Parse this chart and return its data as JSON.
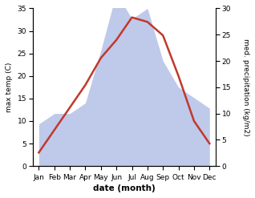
{
  "months": [
    "Jan",
    "Feb",
    "Mar",
    "Apr",
    "May",
    "Jun",
    "Jul",
    "Aug",
    "Sep",
    "Oct",
    "Nov",
    "Dec"
  ],
  "temperature": [
    3,
    8,
    13,
    18,
    24,
    28,
    33,
    32,
    29,
    20,
    10,
    5
  ],
  "precipitation": [
    8,
    10,
    10,
    12,
    22,
    33,
    28,
    30,
    20,
    15,
    13,
    11
  ],
  "temp_color": "#c0392b",
  "precip_fill_color": "#b8c4e8",
  "temp_ylim": [
    0,
    35
  ],
  "precip_ylim": [
    0,
    30
  ],
  "temp_yticks": [
    0,
    5,
    10,
    15,
    20,
    25,
    30,
    35
  ],
  "precip_yticks": [
    0,
    5,
    10,
    15,
    20,
    25,
    30
  ],
  "xlabel": "date (month)",
  "ylabel_left": "max temp (C)",
  "ylabel_right": "med. precipitation (kg/m2)",
  "tick_fontsize": 6.5,
  "label_fontsize": 6.5,
  "xlabel_fontsize": 7.5
}
